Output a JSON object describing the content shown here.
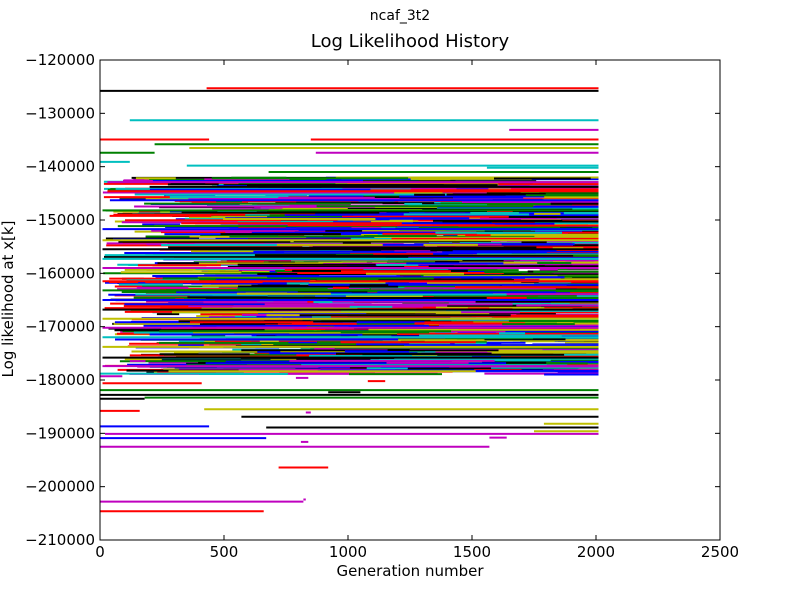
{
  "figure": {
    "suptitle": "ncaf_3t2"
  },
  "chart_data": {
    "type": "line",
    "title": "Log Likelihood History",
    "xlabel": "Generation number",
    "ylabel": "Log likelihood at x[k]",
    "xlim": [
      0,
      2500
    ],
    "ylim": [
      -210000,
      -120000
    ],
    "xticks": [
      0,
      500,
      1000,
      1500,
      2000,
      2500
    ],
    "yticks": [
      -120000,
      -130000,
      -140000,
      -150000,
      -160000,
      -170000,
      -180000,
      -190000,
      -200000,
      -210000
    ],
    "grid": false,
    "legend": "none",
    "colors": [
      "#0000ff",
      "#008000",
      "#ff0000",
      "#00bfbf",
      "#bf00bf",
      "#bfbf00",
      "#000000"
    ],
    "series": [
      {
        "x": [
          430,
          2010
        ],
        "y": [
          -125300,
          -125300
        ],
        "color": "#ff0000"
      },
      {
        "x": [
          0,
          2010
        ],
        "y": [
          -125800,
          -125800
        ],
        "color": "#000000"
      },
      {
        "x": [
          120,
          2010
        ],
        "y": [
          -131300,
          -131300
        ],
        "color": "#00bfbf"
      },
      {
        "x": [
          1650,
          2010
        ],
        "y": [
          -133100,
          -133100
        ],
        "color": "#bf00bf"
      },
      {
        "x": [
          0,
          440
        ],
        "y": [
          -134900,
          -134900
        ],
        "color": "#ff0000"
      },
      {
        "x": [
          850,
          2010
        ],
        "y": [
          -134900,
          -134900
        ],
        "color": "#ff0000"
      },
      {
        "x": [
          220,
          2010
        ],
        "y": [
          -135800,
          -135800
        ],
        "color": "#008000"
      },
      {
        "x": [
          360,
          2010
        ],
        "y": [
          -136500,
          -136500
        ],
        "color": "#bfbf00"
      },
      {
        "x": [
          0,
          220
        ],
        "y": [
          -137400,
          -137400
        ],
        "color": "#008000"
      },
      {
        "x": [
          870,
          2010
        ],
        "y": [
          -137400,
          -137400
        ],
        "color": "#bf00bf"
      },
      {
        "x": [
          0,
          120
        ],
        "y": [
          -139100,
          -139100
        ],
        "color": "#00bfbf"
      },
      {
        "x": [
          350,
          2010
        ],
        "y": [
          -139800,
          -139800
        ],
        "color": "#00bfbf"
      },
      {
        "x": [
          1560,
          2010
        ],
        "y": [
          -140200,
          -140200
        ],
        "color": "#00bfbf"
      },
      {
        "x": [
          680,
          2010
        ],
        "y": [
          -141000,
          -141000
        ],
        "color": "#008000"
      },
      {
        "x": [
          30,
          2010
        ],
        "y": [
          -142900,
          -142900
        ],
        "color": "#bf00bf"
      },
      {
        "x": [
          200,
          2010
        ],
        "y": [
          -143800,
          -143800
        ],
        "color": "#000000"
      },
      {
        "x": [
          30,
          2010
        ],
        "y": [
          -144600,
          -144600
        ],
        "color": "#ff0000"
      },
      {
        "x": [
          40,
          2010
        ],
        "y": [
          -146300,
          -146300
        ],
        "color": "#0000ff"
      },
      {
        "x": [
          10,
          2010
        ],
        "y": [
          -148200,
          -148200
        ],
        "color": "#008000"
      },
      {
        "x": [
          10,
          2010
        ],
        "y": [
          -151700,
          -151700
        ],
        "color": "#0000ff"
      },
      {
        "x": [
          10,
          2010
        ],
        "y": [
          -153800,
          -153800
        ],
        "color": "#bfbf00"
      },
      {
        "x": [
          10,
          2010
        ],
        "y": [
          -155500,
          -155500
        ],
        "color": "#000000"
      },
      {
        "x": [
          10,
          2010
        ],
        "y": [
          -157300,
          -157300
        ],
        "color": "#00bfbf"
      },
      {
        "x": [
          10,
          2010
        ],
        "y": [
          -159000,
          -159000
        ],
        "color": "#bf00bf"
      },
      {
        "x": [
          10,
          2010
        ],
        "y": [
          -161500,
          -161500
        ],
        "color": "#ff0000"
      },
      {
        "x": [
          10,
          2010
        ],
        "y": [
          -163200,
          -163200
        ],
        "color": "#008000"
      },
      {
        "x": [
          10,
          2010
        ],
        "y": [
          -165000,
          -165000
        ],
        "color": "#0000ff"
      },
      {
        "x": [
          10,
          2010
        ],
        "y": [
          -166800,
          -166800
        ],
        "color": "#000000"
      },
      {
        "x": [
          10,
          2010
        ],
        "y": [
          -168500,
          -168500
        ],
        "color": "#bfbf00"
      },
      {
        "x": [
          10,
          2010
        ],
        "y": [
          -170200,
          -170200
        ],
        "color": "#bf00bf"
      },
      {
        "x": [
          10,
          2010
        ],
        "y": [
          -172000,
          -172000
        ],
        "color": "#00bfbf"
      },
      {
        "x": [
          10,
          2010
        ],
        "y": [
          -173800,
          -173800
        ],
        "color": "#bfbf00"
      },
      {
        "x": [
          10,
          2010
        ],
        "y": [
          -175800,
          -175800
        ],
        "color": "#000000"
      },
      {
        "x": [
          10,
          2010
        ],
        "y": [
          -177400,
          -177400
        ],
        "color": "#bf00bf"
      },
      {
        "x": [
          0,
          580
        ],
        "y": [
          -178800,
          -178800
        ],
        "color": "#00bfbf"
      },
      {
        "x": [
          0,
          90
        ],
        "y": [
          -179300,
          -179300
        ],
        "color": "#bf00bf"
      },
      {
        "x": [
          790,
          840
        ],
        "y": [
          -179600,
          -179600
        ],
        "color": "#bf00bf"
      },
      {
        "x": [
          1080,
          1150
        ],
        "y": [
          -180200,
          -180200
        ],
        "color": "#ff0000"
      },
      {
        "x": [
          10,
          410
        ],
        "y": [
          -180600,
          -180600
        ],
        "color": "#ff0000"
      },
      {
        "x": [
          0,
          2010
        ],
        "y": [
          -181900,
          -181900
        ],
        "color": "#008000"
      },
      {
        "x": [
          920,
          1050
        ],
        "y": [
          -182300,
          -182300
        ],
        "color": "#000000"
      },
      {
        "x": [
          0,
          2010
        ],
        "y": [
          -182800,
          -182800
        ],
        "color": "#000000"
      },
      {
        "x": [
          0,
          180
        ],
        "y": [
          -183500,
          -183500
        ],
        "color": "#000000"
      },
      {
        "x": [
          180,
          2010
        ],
        "y": [
          -183300,
          -183300
        ],
        "color": "#008000"
      },
      {
        "x": [
          420,
          2010
        ],
        "y": [
          -185500,
          -185500
        ],
        "color": "#bfbf00"
      },
      {
        "x": [
          0,
          160
        ],
        "y": [
          -185800,
          -185800
        ],
        "color": "#ff0000"
      },
      {
        "x": [
          830,
          850
        ],
        "y": [
          -186100,
          -186100
        ],
        "color": "#bf00bf"
      },
      {
        "x": [
          570,
          2010
        ],
        "y": [
          -186900,
          -186900
        ],
        "color": "#000000"
      },
      {
        "x": [
          1790,
          2010
        ],
        "y": [
          -188200,
          -188200
        ],
        "color": "#bfbf00"
      },
      {
        "x": [
          0,
          440
        ],
        "y": [
          -188700,
          -188700
        ],
        "color": "#0000ff"
      },
      {
        "x": [
          670,
          2010
        ],
        "y": [
          -188900,
          -188900
        ],
        "color": "#000000"
      },
      {
        "x": [
          1750,
          2010
        ],
        "y": [
          -189600,
          -189600
        ],
        "color": "#bfbf00"
      },
      {
        "x": [
          20,
          2010
        ],
        "y": [
          -190100,
          -190100
        ],
        "color": "#bf00bf"
      },
      {
        "x": [
          0,
          670
        ],
        "y": [
          -190900,
          -190900
        ],
        "color": "#0000ff"
      },
      {
        "x": [
          1570,
          1640
        ],
        "y": [
          -190800,
          -190800
        ],
        "color": "#bf00bf"
      },
      {
        "x": [
          810,
          840
        ],
        "y": [
          -191600,
          -191600
        ],
        "color": "#bf00bf"
      },
      {
        "x": [
          0,
          1570
        ],
        "y": [
          -192500,
          -192500
        ],
        "color": "#bf00bf"
      },
      {
        "x": [
          720,
          920
        ],
        "y": [
          -196400,
          -196400
        ],
        "color": "#ff0000"
      },
      {
        "x": [
          0,
          820
        ],
        "y": [
          -202800,
          -202800
        ],
        "color": "#bf00bf"
      },
      {
        "x": [
          820,
          830
        ],
        "y": [
          -202400,
          -202400
        ],
        "color": "#bf00bf"
      },
      {
        "x": [
          0,
          660
        ],
        "y": [
          -204600,
          -204600
        ],
        "color": "#ff0000"
      }
    ]
  }
}
